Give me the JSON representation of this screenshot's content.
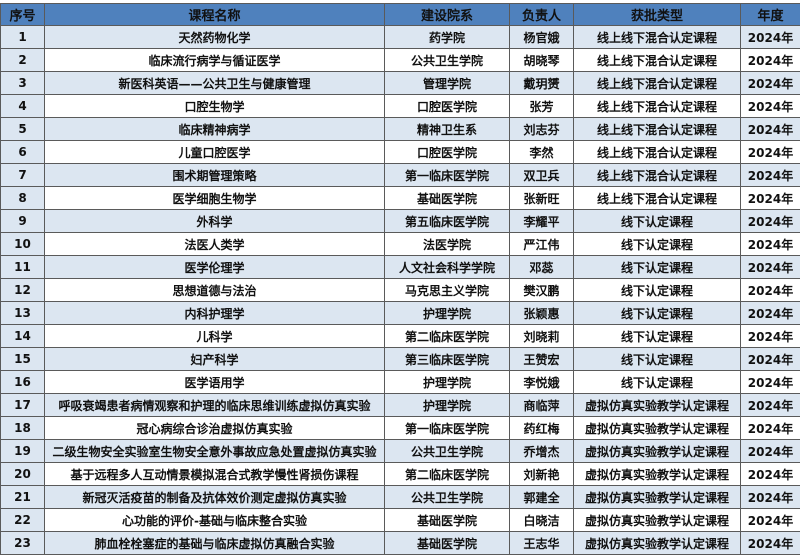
{
  "table": {
    "headers": [
      "序号",
      "课程名称",
      "建设院系",
      "负责人",
      "获批类型",
      "年度"
    ],
    "rows": [
      [
        "1",
        "天然药物化学",
        "药学院",
        "杨官娥",
        "线上线下混合认定课程",
        "2024年"
      ],
      [
        "2",
        "临床流行病学与循证医学",
        "公共卫生学院",
        "胡晓琴",
        "线上线下混合认定课程",
        "2024年"
      ],
      [
        "3",
        "新医科英语——公共卫生与健康管理",
        "管理学院",
        "戴玥赟",
        "线上线下混合认定课程",
        "2024年"
      ],
      [
        "4",
        "口腔生物学",
        "口腔医学院",
        "张芳",
        "线上线下混合认定课程",
        "2024年"
      ],
      [
        "5",
        "临床精神病学",
        "精神卫生系",
        "刘志芬",
        "线上线下混合认定课程",
        "2024年"
      ],
      [
        "6",
        "儿童口腔医学",
        "口腔医学院",
        "李然",
        "线上线下混合认定课程",
        "2024年"
      ],
      [
        "7",
        "围术期管理策略",
        "第一临床医学院",
        "双卫兵",
        "线上线下混合认定课程",
        "2024年"
      ],
      [
        "8",
        "医学细胞生物学",
        "基础医学院",
        "张新旺",
        "线上线下混合认定课程",
        "2024年"
      ],
      [
        "9",
        "外科学",
        "第五临床医学院",
        "李耀平",
        "线下认定课程",
        "2024年"
      ],
      [
        "10",
        "法医人类学",
        "法医学院",
        "严江伟",
        "线下认定课程",
        "2024年"
      ],
      [
        "11",
        "医学伦理学",
        "人文社会科学学院",
        "邓蕊",
        "线下认定课程",
        "2024年"
      ],
      [
        "12",
        "思想道德与法治",
        "马克思主义学院",
        "樊汉鹏",
        "线下认定课程",
        "2024年"
      ],
      [
        "13",
        "内科护理学",
        "护理学院",
        "张颖惠",
        "线下认定课程",
        "2024年"
      ],
      [
        "14",
        "儿科学",
        "第二临床医学院",
        "刘晓莉",
        "线下认定课程",
        "2024年"
      ],
      [
        "15",
        "妇产科学",
        "第三临床医学院",
        "王赞宏",
        "线下认定课程",
        "2024年"
      ],
      [
        "16",
        "医学语用学",
        "护理学院",
        "李悦娥",
        "线下认定课程",
        "2024年"
      ],
      [
        "17",
        "呼吸衰竭患者病情观察和护理的临床思维训练虚拟仿真实验",
        "护理学院",
        "商临萍",
        "虚拟仿真实验教学认定课程",
        "2024年"
      ],
      [
        "18",
        "冠心病综合诊治虚拟仿真实验",
        "第一临床医学院",
        "药红梅",
        "虚拟仿真实验教学认定课程",
        "2024年"
      ],
      [
        "19",
        "二级生物安全实验室生物安全意外事故应急处置虚拟仿真实验",
        "公共卫生学院",
        "乔增杰",
        "虚拟仿真实验教学认定课程",
        "2024年"
      ],
      [
        "20",
        "基于远程多人互动情景模拟混合式教学慢性肾损伤课程",
        "第二临床医学院",
        "刘新艳",
        "虚拟仿真实验教学认定课程",
        "2024年"
      ],
      [
        "21",
        "新冠灭活疫苗的制备及抗体效价测定虚拟仿真实验",
        "公共卫生学院",
        "郭建全",
        "虚拟仿真实验教学认定课程",
        "2024年"
      ],
      [
        "22",
        "心功能的评价-基础与临床整合实验",
        "基础医学院",
        "白晓洁",
        "虚拟仿真实验教学认定课程",
        "2024年"
      ],
      [
        "23",
        "肺血栓栓塞症的基础与临床虚拟仿真融合实验",
        "基础医学院",
        "王志华",
        "虚拟仿真实验教学认定课程",
        "2024年"
      ]
    ]
  },
  "colors": {
    "header_bg": "#4f81bd",
    "band_bg": "#dce6f1",
    "border": "#5a5a5a"
  }
}
